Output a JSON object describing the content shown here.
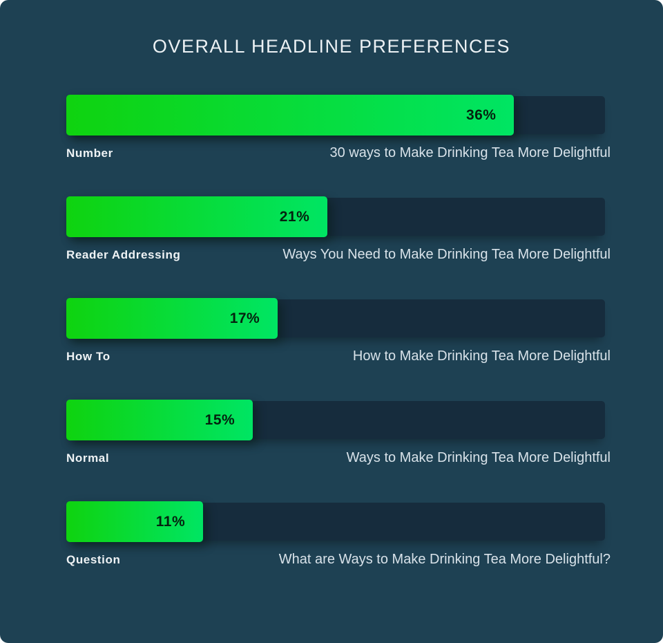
{
  "title": "OVERALL HEADLINE PREFERENCES",
  "colors": {
    "page_bg": "#FFFFFF",
    "card_bg": "#1E4153",
    "track": "#162C3D",
    "bar_start": "#0FD30F",
    "bar_end": "#00E563",
    "value_text": "#05210F",
    "title_text": "#ECF1F4",
    "label_text": "#EFF3F5",
    "example_text": "#D8E2E9"
  },
  "chart_data": {
    "type": "bar",
    "orientation": "horizontal",
    "title": "OVERALL HEADLINE PREFERENCES",
    "categories": [
      "Number",
      "Reader Addressing",
      "How To",
      "Normal",
      "Question"
    ],
    "values": [
      36,
      21,
      17,
      15,
      11
    ],
    "unit": "%",
    "value_labels": [
      "36%",
      "21%",
      "17%",
      "15%",
      "11%"
    ],
    "annotations": [
      "30 ways to Make Drinking Tea More Delightful",
      "Ways You Need to Make Drinking Tea More Delightful",
      "How to Make Drinking Tea More Delightful",
      "Ways to Make Drinking Tea More Delightful",
      "What are Ways to Make Drinking Tea More Delightful?"
    ],
    "xlim": [
      0,
      43.3
    ],
    "grid": false,
    "legend": false,
    "bar_color": "green-gradient",
    "value_label_position": "inside-end"
  },
  "rows": [
    {
      "label": "Number",
      "value": 36,
      "value_label": "36%",
      "example": "30 ways to Make Drinking Tea More Delightful"
    },
    {
      "label": "Reader Addressing",
      "value": 21,
      "value_label": "21%",
      "example": "Ways You Need to Make Drinking Tea More Delightful"
    },
    {
      "label": "How To",
      "value": 17,
      "value_label": "17%",
      "example": "How to Make Drinking Tea More Delightful"
    },
    {
      "label": "Normal",
      "value": 15,
      "value_label": "15%",
      "example": "Ways to Make Drinking Tea More Delightful"
    },
    {
      "label": "Question",
      "value": 11,
      "value_label": "11%",
      "example": "What are Ways to Make Drinking Tea More Delightful?"
    }
  ]
}
